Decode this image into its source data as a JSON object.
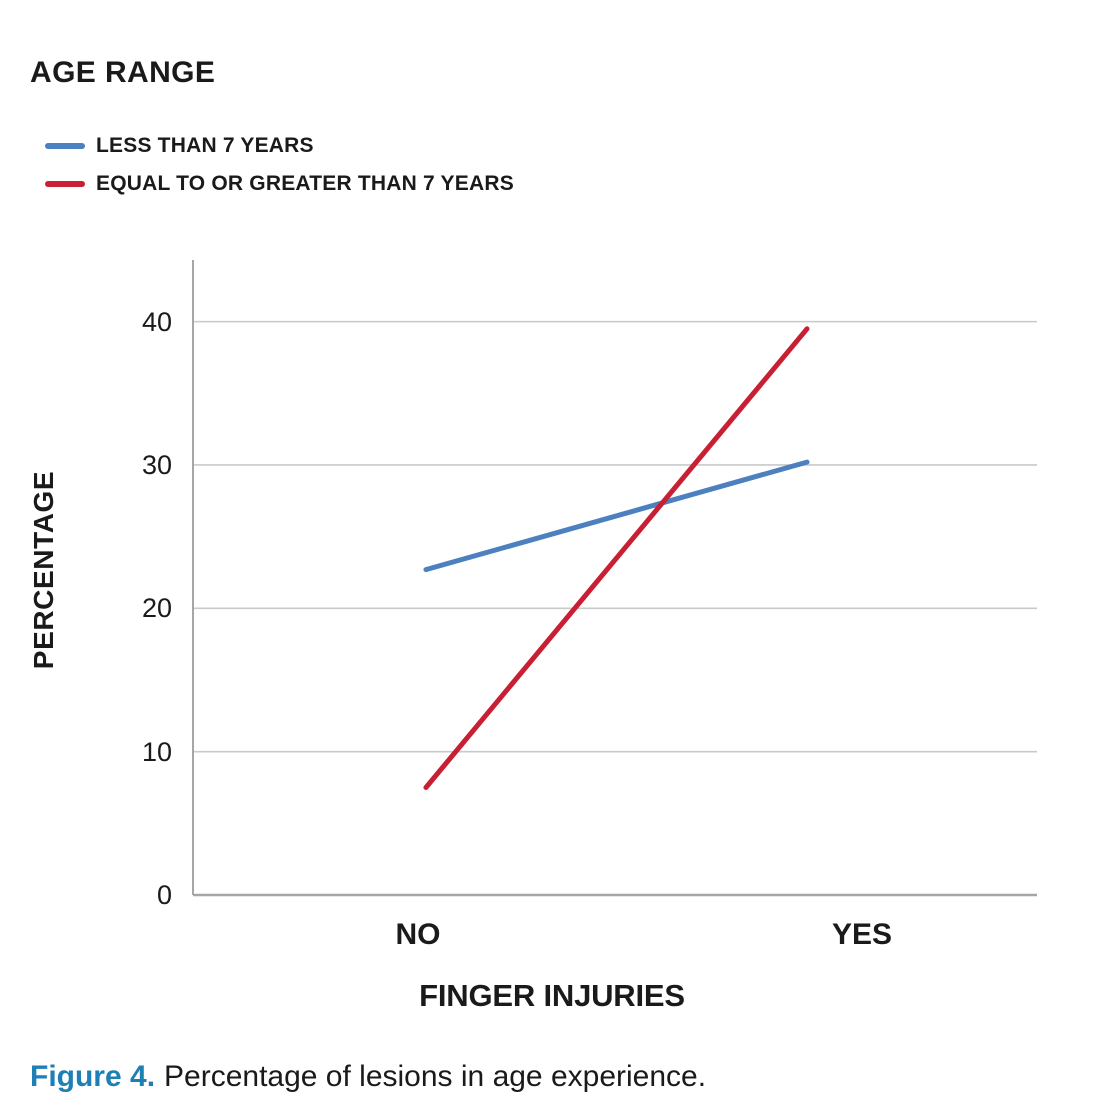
{
  "legend": {
    "title": "AGE RANGE",
    "items": [
      {
        "label": "LESS THAN 7 YEARS",
        "color": "#4C80BF"
      },
      {
        "label": "EQUAL TO OR GREATER THAN 7 YEARS",
        "color": "#C91F33"
      }
    ]
  },
  "chart_data": {
    "type": "line",
    "title": "AGE RANGE",
    "categories": [
      "NO",
      "YES"
    ],
    "series": [
      {
        "name": "LESS THAN 7 YEARS",
        "color": "#4C80BF",
        "values": [
          22.7,
          30.2
        ]
      },
      {
        "name": "EQUAL TO OR GREATER THAN 7 YEARS",
        "color": "#C91F33",
        "values": [
          7.5,
          39.5
        ]
      }
    ],
    "xlabel": "FINGER INJURIES",
    "ylabel": "PERCENTAGE",
    "yticks": [
      0,
      10,
      20,
      30,
      40
    ],
    "ylim": [
      0,
      44.3
    ],
    "grid": true,
    "legend_position": "top-left",
    "grid_color": "#C9C9C9",
    "axis_color": "#A6A6A6"
  },
  "caption": {
    "prefix": "Figure 4.",
    "text": "Percentage of lesions in age experience.",
    "accent_color": "#1E7FB5"
  }
}
